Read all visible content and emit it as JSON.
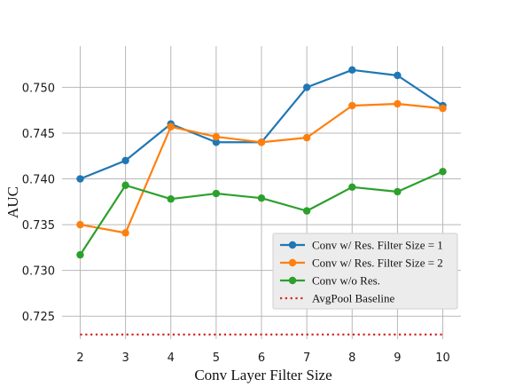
{
  "chart_data": {
    "type": "line",
    "title": "",
    "xlabel": "Conv Layer Filter Size",
    "ylabel": "AUC",
    "x": [
      2,
      3,
      4,
      5,
      6,
      7,
      8,
      9,
      10
    ],
    "xlim": [
      1.6,
      10.4
    ],
    "ylim": [
      0.7225,
      0.7545
    ],
    "yticks": [
      0.725,
      0.73,
      0.735,
      0.74,
      0.745,
      0.75
    ],
    "ytick_labels": [
      "0.725",
      "0.730",
      "0.735",
      "0.740",
      "0.745",
      "0.750"
    ],
    "xtick_labels": [
      "2",
      "3",
      "4",
      "5",
      "6",
      "7",
      "8",
      "9",
      "10"
    ],
    "grid": true,
    "legend_position": "lower-right",
    "series": [
      {
        "name": "Conv w/ Res. Filter Size = 1",
        "color": "#1f77b4",
        "style": "solid",
        "marker": true,
        "values": [
          0.74,
          0.742,
          0.746,
          0.744,
          0.744,
          0.75,
          0.7519,
          0.7513,
          0.748
        ]
      },
      {
        "name": "Conv w/ Res. Filter Size = 2",
        "color": "#ff7f0e",
        "style": "solid",
        "marker": true,
        "values": [
          0.735,
          0.7341,
          0.7457,
          0.7446,
          0.744,
          0.7445,
          0.748,
          0.7482,
          0.7477
        ]
      },
      {
        "name": "Conv w/o Res.",
        "color": "#2ca02c",
        "style": "solid",
        "marker": true,
        "values": [
          0.7317,
          0.7393,
          0.7378,
          0.7384,
          0.7379,
          0.7365,
          0.7391,
          0.7386,
          0.7408
        ]
      },
      {
        "name": "AvgPool Baseline",
        "color": "#d62728",
        "style": "dotted",
        "marker": false,
        "values": [
          0.723,
          0.723,
          0.723,
          0.723,
          0.723,
          0.723,
          0.723,
          0.723,
          0.723
        ]
      }
    ]
  }
}
